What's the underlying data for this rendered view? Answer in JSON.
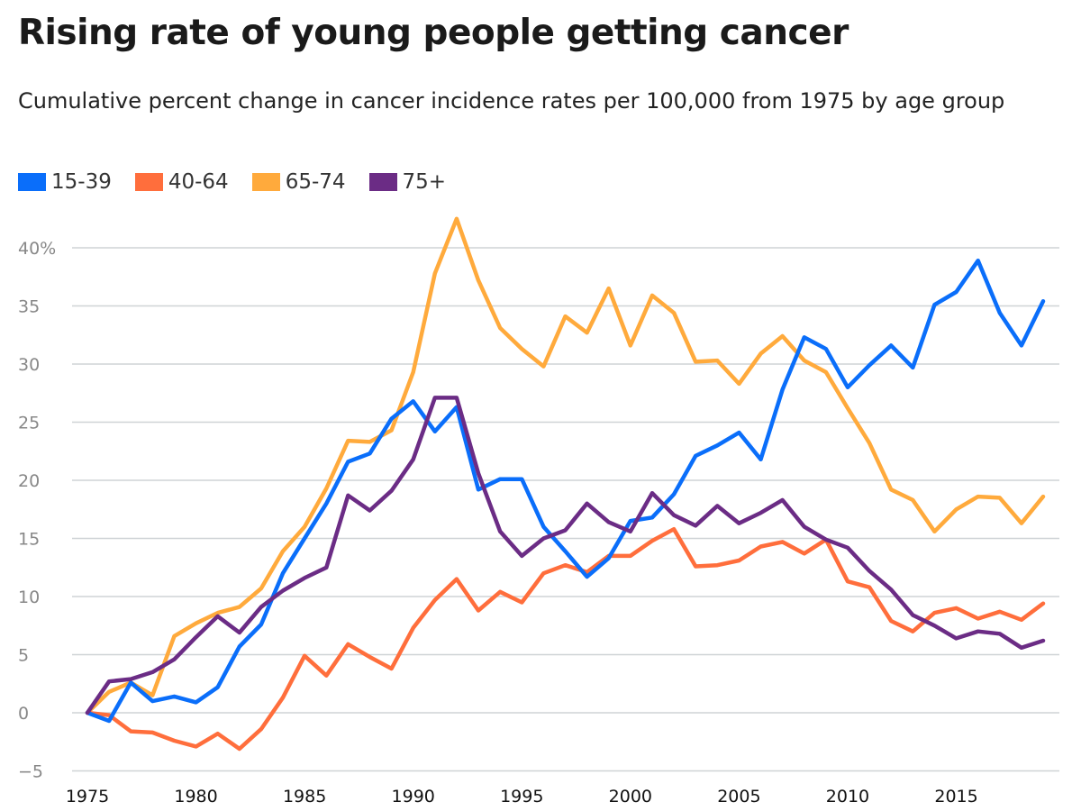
{
  "chart_data": {
    "type": "line",
    "title": "Rising rate of young people getting cancer",
    "subtitle": "Cumulative percent change in cancer incidence rates per 100,000 from 1975 by age group",
    "xlabel": "",
    "ylabel": "",
    "xlim": [
      1975,
      2019
    ],
    "ylim": [
      -5,
      42.5
    ],
    "x_ticks": [
      1975,
      1980,
      1985,
      1990,
      1995,
      2000,
      2005,
      2010,
      2015
    ],
    "x_tick_labels": [
      "1975",
      "1980",
      "1985",
      "1990",
      "1995",
      "2000",
      "2005",
      "2010",
      "2015"
    ],
    "y_ticks": [
      -5,
      0,
      5,
      10,
      15,
      20,
      25,
      30,
      35,
      40
    ],
    "y_tick_labels": [
      "−5",
      "0",
      "5",
      "10",
      "15",
      "20",
      "25",
      "30",
      "35",
      "40%"
    ],
    "grid": "horizontal",
    "legend_position": "top-left",
    "x": [
      1975,
      1976,
      1977,
      1978,
      1979,
      1980,
      1981,
      1982,
      1983,
      1984,
      1985,
      1986,
      1987,
      1988,
      1989,
      1990,
      1991,
      1992,
      1993,
      1994,
      1995,
      1996,
      1997,
      1998,
      1999,
      2000,
      2001,
      2002,
      2003,
      2004,
      2005,
      2006,
      2007,
      2008,
      2009,
      2010,
      2011,
      2012,
      2013,
      2014,
      2015,
      2016,
      2017,
      2018,
      2019
    ],
    "series": [
      {
        "name": "15-39",
        "color": "#0A6EFA",
        "values": [
          0,
          -0.7,
          2.6,
          1.0,
          1.4,
          0.9,
          2.2,
          5.7,
          7.6,
          12,
          15,
          18,
          21.6,
          22.3,
          25.3,
          26.8,
          24.2,
          26.3,
          19.2,
          20.1,
          20.1,
          16,
          13.9,
          11.7,
          13.3,
          16.5,
          16.8,
          18.8,
          22.1,
          23,
          24.1,
          21.8,
          27.8,
          32.3,
          31.3,
          28,
          29.9,
          31.6,
          29.7,
          35.1,
          36.2,
          38.9,
          34.4,
          31.6,
          35.4
        ]
      },
      {
        "name": "40-64",
        "color": "#FF6E3C",
        "values": [
          0,
          -0.2,
          -1.6,
          -1.7,
          -2.4,
          -2.9,
          -1.8,
          -3.1,
          -1.4,
          1.3,
          4.9,
          3.2,
          5.9,
          4.8,
          3.8,
          7.3,
          9.7,
          11.5,
          8.8,
          10.4,
          9.5,
          12,
          12.7,
          12.1,
          13.5,
          13.5,
          14.8,
          15.8,
          12.6,
          12.7,
          13.1,
          14.3,
          14.7,
          13.7,
          14.9,
          11.3,
          10.8,
          7.9,
          7,
          8.6,
          9,
          8.1,
          8.7,
          8,
          9.4
        ]
      },
      {
        "name": "65-74",
        "color": "#FFAA3C",
        "values": [
          0,
          1.8,
          2.6,
          1.5,
          6.6,
          7.7,
          8.6,
          9.1,
          10.7,
          13.9,
          16,
          19.3,
          23.4,
          23.3,
          24.3,
          29.3,
          37.8,
          42.5,
          37.2,
          33.1,
          31.3,
          29.8,
          34.1,
          32.7,
          36.5,
          31.6,
          35.9,
          34.4,
          30.2,
          30.3,
          28.3,
          30.9,
          32.4,
          30.3,
          29.3,
          26.2,
          23.2,
          19.2,
          18.3,
          15.6,
          17.5,
          18.6,
          18.5,
          16.3,
          18.6
        ]
      },
      {
        "name": "75+",
        "color": "#6B2C85",
        "values": [
          0,
          2.7,
          2.9,
          3.5,
          4.6,
          6.5,
          8.3,
          6.9,
          9.1,
          10.5,
          11.6,
          12.5,
          18.7,
          17.4,
          19.1,
          21.8,
          27.1,
          27.1,
          20.6,
          15.6,
          13.5,
          15,
          15.7,
          18,
          16.4,
          15.6,
          18.9,
          17,
          16.1,
          17.8,
          16.3,
          17.2,
          18.3,
          16,
          14.9,
          14.2,
          12.2,
          10.6,
          8.4,
          7.5,
          6.4,
          7,
          6.8,
          5.6,
          6.2
        ]
      }
    ]
  }
}
